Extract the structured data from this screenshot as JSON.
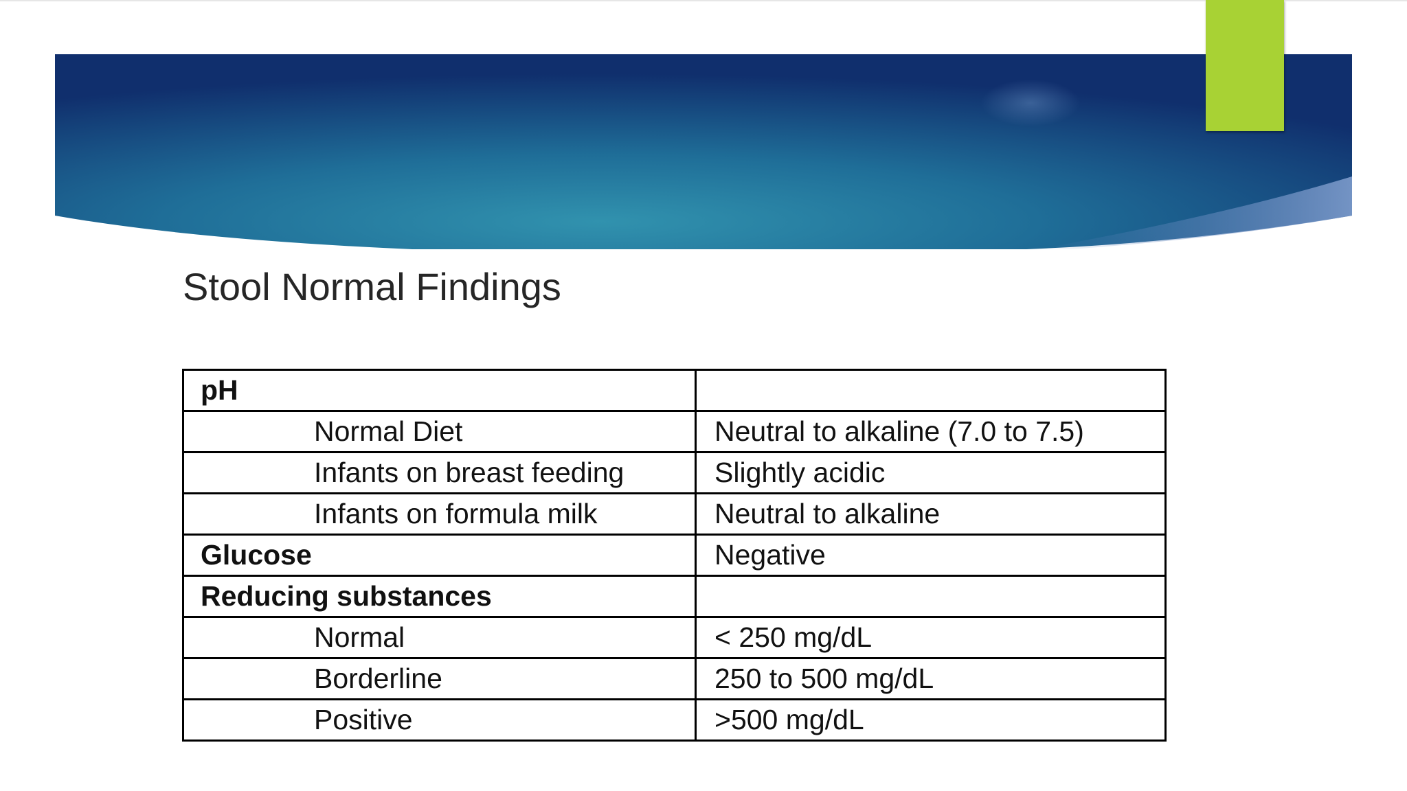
{
  "slide": {
    "title": "Stool Normal Findings",
    "accent_color": "#a8d234",
    "banner_colors": [
      "#0f2d6b",
      "#2a86a8",
      "#0b2a66"
    ]
  },
  "table": {
    "rows": [
      {
        "parameter": "pH",
        "value": "",
        "bold": true
      },
      {
        "parameter": "Normal Diet",
        "value": "Neutral to alkaline (7.0 to 7.5)",
        "bold": false
      },
      {
        "parameter": "Infants on breast feeding",
        "value": "Slightly acidic",
        "bold": false
      },
      {
        "parameter": "Infants on formula milk",
        "value": "Neutral to alkaline",
        "bold": false
      },
      {
        "parameter": "Glucose",
        "value": "Negative",
        "bold": true
      },
      {
        "parameter": "Reducing substances",
        "value": "",
        "bold": true
      },
      {
        "parameter": "Normal",
        "value": "< 250 mg/dL",
        "bold": false
      },
      {
        "parameter": "Borderline",
        "value": "250 to 500 mg/dL",
        "bold": false
      },
      {
        "parameter": "Positive",
        "value": ">500 mg/dL",
        "bold": false
      }
    ]
  }
}
